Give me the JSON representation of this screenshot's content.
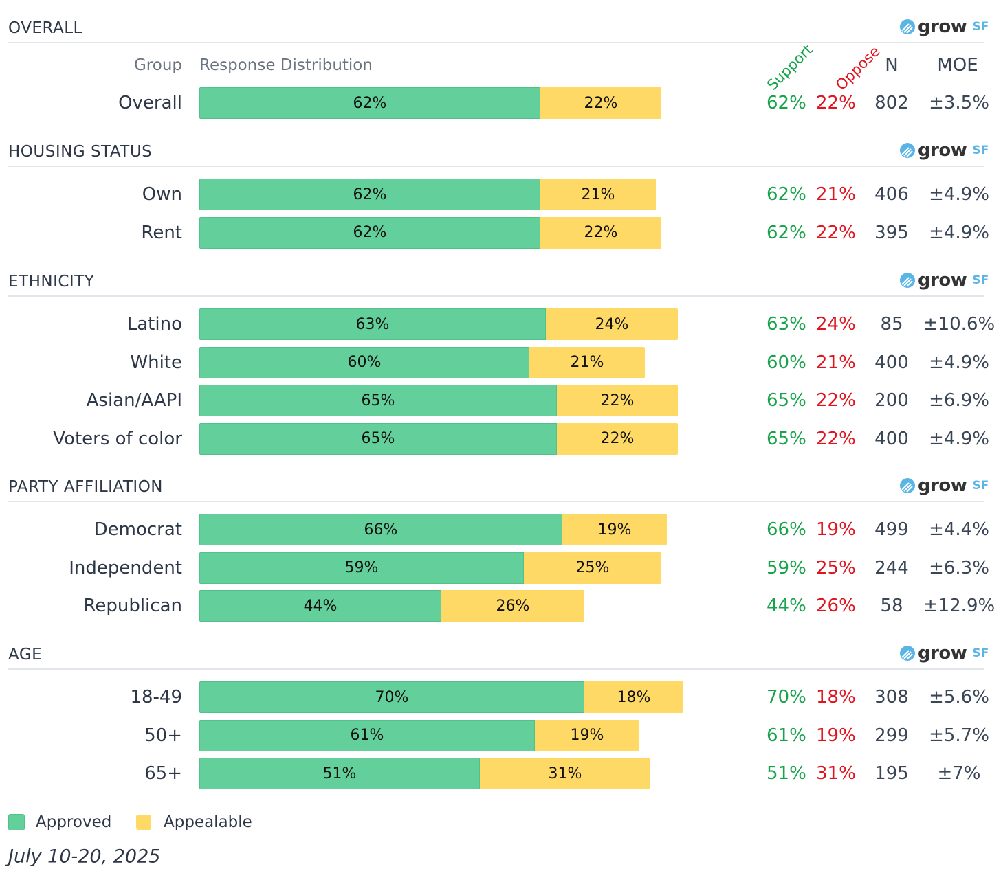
{
  "brand": {
    "logo_text": "grow",
    "logo_suffix": "SF"
  },
  "headers": {
    "group": "Group",
    "distribution": "Response Distribution",
    "support": "Support",
    "oppose": "Oppose",
    "n": "N",
    "moe": "MOE"
  },
  "colors": {
    "approved": "#63d09c",
    "appealable": "#fed966",
    "support": "#16a34a",
    "oppose": "#e0141e"
  },
  "chart_data": {
    "type": "bar",
    "stacked": true,
    "orientation": "horizontal",
    "legend": {
      "position": "bottom-left",
      "items": [
        "Approved",
        "Appealable"
      ]
    },
    "date": "July 10-20, 2025",
    "sections": [
      {
        "title": "OVERALL",
        "rows": [
          {
            "group": "Overall",
            "approved": 62,
            "appealable": 22,
            "support": "62%",
            "oppose": "22%",
            "n": "802",
            "moe": "±3.5%"
          }
        ]
      },
      {
        "title": "HOUSING STATUS",
        "rows": [
          {
            "group": "Own",
            "approved": 62,
            "appealable": 21,
            "support": "62%",
            "oppose": "21%",
            "n": "406",
            "moe": "±4.9%"
          },
          {
            "group": "Rent",
            "approved": 62,
            "appealable": 22,
            "support": "62%",
            "oppose": "22%",
            "n": "395",
            "moe": "±4.9%"
          }
        ]
      },
      {
        "title": "ETHNICITY",
        "rows": [
          {
            "group": "Latino",
            "approved": 63,
            "appealable": 24,
            "support": "63%",
            "oppose": "24%",
            "n": "85",
            "moe": "±10.6%"
          },
          {
            "group": "White",
            "approved": 60,
            "appealable": 21,
            "support": "60%",
            "oppose": "21%",
            "n": "400",
            "moe": "±4.9%"
          },
          {
            "group": "Asian/AAPI",
            "approved": 65,
            "appealable": 22,
            "support": "65%",
            "oppose": "22%",
            "n": "200",
            "moe": "±6.9%"
          },
          {
            "group": "Voters of color",
            "approved": 65,
            "appealable": 22,
            "support": "65%",
            "oppose": "22%",
            "n": "400",
            "moe": "±4.9%"
          }
        ]
      },
      {
        "title": "PARTY AFFILIATION",
        "rows": [
          {
            "group": "Democrat",
            "approved": 66,
            "appealable": 19,
            "support": "66%",
            "oppose": "19%",
            "n": "499",
            "moe": "±4.4%"
          },
          {
            "group": "Independent",
            "approved": 59,
            "appealable": 25,
            "support": "59%",
            "oppose": "25%",
            "n": "244",
            "moe": "±6.3%"
          },
          {
            "group": "Republican",
            "approved": 44,
            "appealable": 26,
            "support": "44%",
            "oppose": "26%",
            "n": "58",
            "moe": "±12.9%"
          }
        ]
      },
      {
        "title": "AGE",
        "rows": [
          {
            "group": "18-49",
            "approved": 70,
            "appealable": 18,
            "support": "70%",
            "oppose": "18%",
            "n": "308",
            "moe": "±5.6%"
          },
          {
            "group": "50+",
            "approved": 61,
            "appealable": 19,
            "support": "61%",
            "oppose": "19%",
            "n": "299",
            "moe": "±5.7%"
          },
          {
            "group": "65+",
            "approved": 51,
            "appealable": 31,
            "support": "51%",
            "oppose": "31%",
            "n": "195",
            "moe": "±7%"
          }
        ]
      }
    ]
  }
}
